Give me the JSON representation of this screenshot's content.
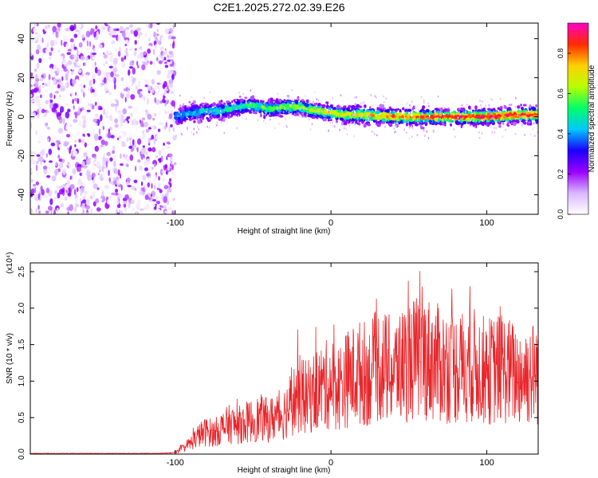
{
  "title": "C2E1.2025.272.02.39.E26",
  "chart_data": [
    {
      "type": "heatmap",
      "title": "C2E1.2025.272.02.39.E26",
      "xlabel": "Height of straight line (km)",
      "ylabel": "Frequency (Hz)",
      "xlim": [
        -193,
        133
      ],
      "ylim": [
        -50,
        48
      ],
      "xticks": [
        -100,
        0,
        100
      ],
      "xtick_labels": [
        "-100",
        "0",
        "100"
      ],
      "yticks": [
        -40,
        -20,
        0,
        20,
        40
      ],
      "ytick_labels": [
        "-40",
        "-20",
        "0",
        "20",
        "40"
      ],
      "noise_region_x": [
        -193,
        -100
      ],
      "signal_trace": {
        "x": [
          -100,
          -90,
          -80,
          -70,
          -60,
          -50,
          -40,
          -30,
          -20,
          -10,
          0,
          10,
          20,
          40,
          60,
          80,
          100,
          120,
          133
        ],
        "frequency_hz": [
          0,
          2,
          3,
          3,
          5,
          6,
          4,
          5,
          5,
          3,
          2,
          1,
          1,
          0,
          0,
          0,
          0,
          1,
          1
        ]
      },
      "colorbar": {
        "label": "Normalized spectral amplitude",
        "range": [
          0.0,
          0.95
        ],
        "ticks": [
          0.0,
          0.2,
          0.4,
          0.6,
          0.8
        ],
        "tick_labels": [
          "0.0",
          "0.2",
          "0.4",
          "0.6",
          "0.8"
        ],
        "colors": [
          "#ffffff",
          "#d8b8ff",
          "#9a00ff",
          "#1a00ff",
          "#00c8ff",
          "#00ff66",
          "#b8ff00",
          "#ffd000",
          "#ff2a00",
          "#ff00c8"
        ]
      }
    },
    {
      "type": "line",
      "xlabel": "Height of straight line (km)",
      "ylabel": "SNR (10 * v/v)",
      "multiplier": "(x10⁴)",
      "xlim": [
        -193,
        133
      ],
      "ylim": [
        0,
        2.62
      ],
      "xticks": [
        -100,
        0,
        100
      ],
      "xtick_labels": [
        "-100",
        "0",
        "100"
      ],
      "yticks": [
        0.0,
        0.5,
        1.0,
        1.5,
        2.0,
        2.5
      ],
      "ytick_labels": [
        "0.0",
        "0.5",
        "1.0",
        "1.5",
        "2.0",
        "2.5"
      ],
      "color": "#e8262b",
      "series": [
        {
          "name": "SNR",
          "x": [
            -193,
            -150,
            -110,
            -100,
            -95,
            -90,
            -85,
            -80,
            -75,
            -70,
            -65,
            -60,
            -55,
            -50,
            -45,
            -40,
            -35,
            -30,
            -25,
            -20,
            -15,
            -10,
            -5,
            0,
            5,
            10,
            15,
            20,
            25,
            30,
            40,
            50,
            60,
            70,
            80,
            90,
            100,
            110,
            120,
            133
          ],
          "y": [
            0.01,
            0.01,
            0.01,
            0.02,
            0.08,
            0.15,
            0.25,
            0.3,
            0.28,
            0.35,
            0.4,
            0.38,
            0.42,
            0.45,
            0.48,
            0.45,
            0.5,
            0.55,
            0.7,
            0.8,
            0.75,
            0.85,
            0.9,
            0.95,
            0.9,
            1.0,
            1.05,
            1.1,
            1.05,
            1.2,
            1.1,
            1.25,
            1.3,
            1.2,
            1.15,
            1.2,
            1.1,
            1.15,
            1.05,
            1.1
          ]
        }
      ]
    }
  ]
}
